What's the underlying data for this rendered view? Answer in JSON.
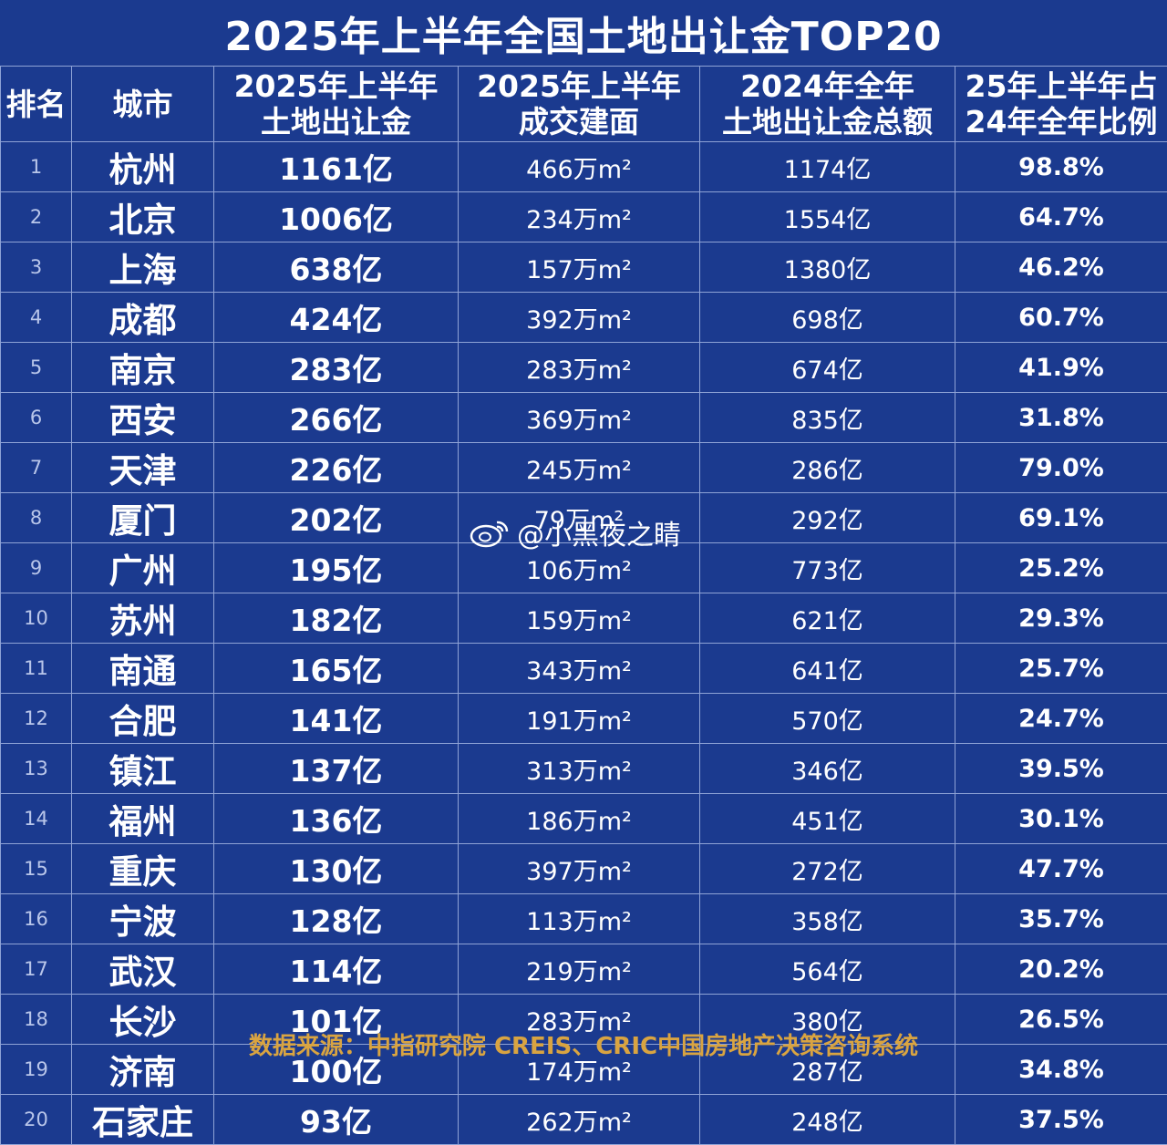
{
  "title": "2025年上半年全国土地出让金TOP20",
  "headers": {
    "rank": "排名",
    "city": "城市",
    "gold_line1": "2025年上半年",
    "gold_line2": "土地出让金",
    "area_line1": "2025年上半年",
    "area_line2": "成交建面",
    "total_line1": "2024年全年",
    "total_line2": "土地出让金总额",
    "pct_line1": "25年上半年占",
    "pct_line2": "24年全年比例"
  },
  "rows": [
    {
      "rank": "1",
      "city": "杭州",
      "gold": "1161亿",
      "area": "466万m²",
      "total": "1174亿",
      "pct": "98.8%"
    },
    {
      "rank": "2",
      "city": "北京",
      "gold": "1006亿",
      "area": "234万m²",
      "total": "1554亿",
      "pct": "64.7%"
    },
    {
      "rank": "3",
      "city": "上海",
      "gold": "638亿",
      "area": "157万m²",
      "total": "1380亿",
      "pct": "46.2%"
    },
    {
      "rank": "4",
      "city": "成都",
      "gold": "424亿",
      "area": "392万m²",
      "total": "698亿",
      "pct": "60.7%"
    },
    {
      "rank": "5",
      "city": "南京",
      "gold": "283亿",
      "area": "283万m²",
      "total": "674亿",
      "pct": "41.9%"
    },
    {
      "rank": "6",
      "city": "西安",
      "gold": "266亿",
      "area": "369万m²",
      "total": "835亿",
      "pct": "31.8%"
    },
    {
      "rank": "7",
      "city": "天津",
      "gold": "226亿",
      "area": "245万m²",
      "total": "286亿",
      "pct": "79.0%"
    },
    {
      "rank": "8",
      "city": "厦门",
      "gold": "202亿",
      "area": "79万m²",
      "total": "292亿",
      "pct": "69.1%"
    },
    {
      "rank": "9",
      "city": "广州",
      "gold": "195亿",
      "area": "106万m²",
      "total": "773亿",
      "pct": "25.2%"
    },
    {
      "rank": "10",
      "city": "苏州",
      "gold": "182亿",
      "area": "159万m²",
      "total": "621亿",
      "pct": "29.3%"
    },
    {
      "rank": "11",
      "city": "南通",
      "gold": "165亿",
      "area": "343万m²",
      "total": "641亿",
      "pct": "25.7%"
    },
    {
      "rank": "12",
      "city": "合肥",
      "gold": "141亿",
      "area": "191万m²",
      "total": "570亿",
      "pct": "24.7%"
    },
    {
      "rank": "13",
      "city": "镇江",
      "gold": "137亿",
      "area": "313万m²",
      "total": "346亿",
      "pct": "39.5%"
    },
    {
      "rank": "14",
      "city": "福州",
      "gold": "136亿",
      "area": "186万m²",
      "total": "451亿",
      "pct": "30.1%"
    },
    {
      "rank": "15",
      "city": "重庆",
      "gold": "130亿",
      "area": "397万m²",
      "total": "272亿",
      "pct": "47.7%"
    },
    {
      "rank": "16",
      "city": "宁波",
      "gold": "128亿",
      "area": "113万m²",
      "total": "358亿",
      "pct": "35.7%"
    },
    {
      "rank": "17",
      "city": "武汉",
      "gold": "114亿",
      "area": "219万m²",
      "total": "564亿",
      "pct": "20.2%"
    },
    {
      "rank": "18",
      "city": "长沙",
      "gold": "101亿",
      "area": "283万m²",
      "total": "380亿",
      "pct": "26.5%"
    },
    {
      "rank": "19",
      "city": "济南",
      "gold": "100亿",
      "area": "174万m²",
      "total": "287亿",
      "pct": "34.8%"
    },
    {
      "rank": "20",
      "city": "石家庄",
      "gold": "93亿",
      "area": "262万m²",
      "total": "248亿",
      "pct": "37.5%"
    }
  ],
  "source": "数据来源：中指研究院 CREIS、CRIC中国房地产决策咨询系统",
  "watermark": {
    "text": "@小黑夜之睛",
    "icon": "weibo-icon"
  },
  "colors": {
    "background": "#1b3a8f",
    "grid": "#8fa3d6",
    "source_text": "#d9a441"
  }
}
